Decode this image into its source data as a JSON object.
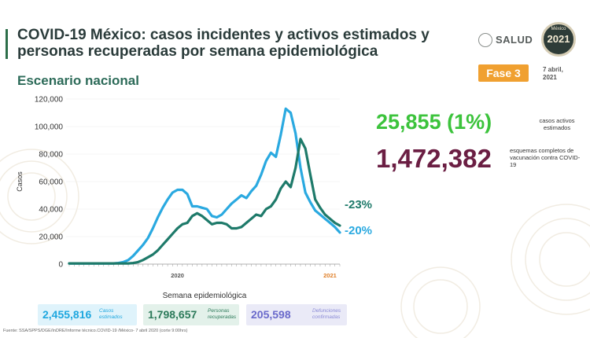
{
  "header": {
    "title": "COVID-19 México: casos incidentes y activos estimados y personas recuperadas por semana epidemiológica",
    "subtitle": "Escenario nacional",
    "logo_text": "SALUD",
    "seal_text": "2021",
    "seal_small": "México",
    "fase_label": "Fase 3",
    "date_label": "7 abril, 2021"
  },
  "stats": {
    "active": {
      "value": "25,855 (1%)",
      "label": "casos activos estimados",
      "color": "#3cc33c"
    },
    "vaccination": {
      "value": "1,472,382",
      "label": "esquemas completos de vacunación contra COVID-19",
      "color": "#6b1e43"
    }
  },
  "chart_data": {
    "type": "line",
    "xlabel": "Semana epidemiológica",
    "ylabel": "Casos",
    "ylim": [
      0,
      120000
    ],
    "yticks": [
      0,
      20000,
      40000,
      60000,
      80000,
      100000,
      120000
    ],
    "ytick_labels": [
      "0",
      "20,000",
      "40,000",
      "60,000",
      "80,000",
      "100,000",
      "120,000"
    ],
    "year_labels": [
      {
        "label": "2020",
        "index": 22
      },
      {
        "label": "2021",
        "index": 53
      }
    ],
    "year_label_colors": [
      "#555555",
      "#e0802a"
    ],
    "series": [
      {
        "color": "#2aa9e0",
        "end_label": "-20%",
        "values": [
          500,
          500,
          500,
          500,
          500,
          500,
          500,
          500,
          500,
          500,
          800,
          1500,
          3000,
          6000,
          10000,
          14000,
          19000,
          26000,
          34000,
          41000,
          47000,
          52000,
          54000,
          54000,
          51000,
          42000,
          42000,
          41000,
          40000,
          35000,
          34000,
          36000,
          40000,
          44000,
          47000,
          50000,
          48000,
          53000,
          57000,
          65000,
          75000,
          81000,
          78000,
          94000,
          113000,
          110000,
          95000,
          70000,
          52000,
          45000,
          39000,
          36000,
          33000,
          30000,
          27000,
          23000
        ]
      },
      {
        "color": "#1e7a6a",
        "end_label": "-23%",
        "values": [
          500,
          500,
          500,
          500,
          500,
          500,
          500,
          500,
          500,
          500,
          500,
          500,
          500,
          800,
          1500,
          3000,
          5000,
          7000,
          10000,
          14000,
          18000,
          22000,
          26000,
          29000,
          30000,
          35000,
          37000,
          35000,
          32000,
          29000,
          30000,
          30000,
          29000,
          26000,
          26000,
          27000,
          30000,
          33000,
          36000,
          35000,
          40000,
          42000,
          47000,
          55000,
          60000,
          56000,
          70000,
          91000,
          84000,
          65000,
          47000,
          41000,
          36000,
          33000,
          30000,
          28000
        ]
      }
    ]
  },
  "summary_boxes": [
    {
      "value": "2,455,816",
      "label": "Casos estimados"
    },
    {
      "value": "1,798,657",
      "label": "Personas recuperadas"
    },
    {
      "value": "205,598",
      "label": "Defunciones confirmadas"
    }
  ],
  "footer": "Fuente: SSA/SPPS/DGE/InDRE/Informe técnico.COVID-19 /México- 7 abril 2020 (corte 9:00hrs)"
}
